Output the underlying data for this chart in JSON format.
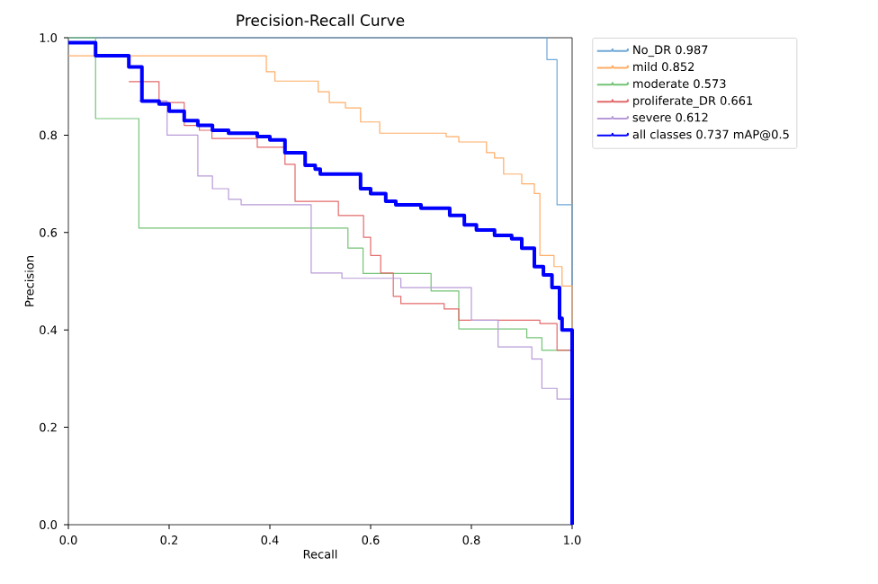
{
  "chart_data": {
    "type": "step",
    "title": "Precision-Recall Curve",
    "xlabel": "Recall",
    "ylabel": "Precision",
    "xlim": [
      0,
      1
    ],
    "ylim": [
      0,
      1
    ],
    "xticks": [
      {
        "value": 0,
        "label": "0.0"
      },
      0.2,
      0.4,
      0.6,
      0.8,
      {
        "value": 1,
        "label": "1.0"
      }
    ],
    "yticks": [
      {
        "value": 0,
        "label": "0.0"
      },
      0.2,
      0.4,
      0.6,
      0.8,
      {
        "value": 1,
        "label": "1.0"
      }
    ],
    "legend": "top right",
    "series": [
      {
        "name": "No_DR 0.987",
        "color": "#6fa8d6",
        "x": [
          0,
          0.95,
          0.97,
          1.0
        ],
        "values": [
          1.0,
          0.955,
          0.657,
          0
        ]
      },
      {
        "name": "mild 0.852",
        "color": "#ffad66",
        "x": [
          0,
          0.393,
          0.41,
          0.496,
          0.518,
          0.55,
          0.58,
          0.618,
          0.75,
          0.775,
          0.83,
          0.846,
          0.864,
          0.9,
          0.925,
          0.936,
          0.964,
          0.98,
          1.0
        ],
        "values": [
          0.963,
          0.93,
          0.911,
          0.889,
          0.867,
          0.856,
          0.827,
          0.804,
          0.797,
          0.786,
          0.764,
          0.753,
          0.72,
          0.7,
          0.68,
          0.553,
          0.53,
          0.49,
          0
        ]
      },
      {
        "name": "moderate 0.573",
        "color": "#74c476",
        "x": [
          0,
          0.054,
          0.14,
          0.555,
          0.585,
          0.72,
          0.775,
          0.91,
          0.94,
          1.0
        ],
        "values": [
          1.0,
          0.834,
          0.609,
          0.568,
          0.516,
          0.48,
          0.402,
          0.384,
          0.358,
          0
        ]
      },
      {
        "name": "proliferate_DR 0.661",
        "color": "#e36a6a",
        "x": [
          0.12,
          0.18,
          0.23,
          0.26,
          0.285,
          0.375,
          0.43,
          0.45,
          0.536,
          0.586,
          0.6,
          0.62,
          0.645,
          0.66,
          0.746,
          0.775,
          0.936,
          0.97,
          1.0
        ],
        "values": [
          0.91,
          0.867,
          0.82,
          0.81,
          0.793,
          0.775,
          0.74,
          0.664,
          0.635,
          0.59,
          0.553,
          0.517,
          0.469,
          0.454,
          0.443,
          0.42,
          0.413,
          0.358,
          0
        ]
      },
      {
        "name": "severe 0.612",
        "color": "#b89ad8",
        "x": [
          0.14,
          0.196,
          0.257,
          0.286,
          0.318,
          0.343,
          0.482,
          0.543,
          0.66,
          0.8,
          0.853,
          0.92,
          0.94,
          0.97,
          1.0
        ],
        "values": [
          0.87,
          0.8,
          0.716,
          0.69,
          0.668,
          0.657,
          0.517,
          0.506,
          0.487,
          0.42,
          0.365,
          0.34,
          0.28,
          0.258,
          0
        ]
      },
      {
        "name": "all classes 0.737 mAP@0.5",
        "color": "#0000ff",
        "x": [
          0,
          0.054,
          0.12,
          0.146,
          0.18,
          0.2,
          0.23,
          0.257,
          0.286,
          0.318,
          0.375,
          0.4,
          0.43,
          0.47,
          0.49,
          0.5,
          0.58,
          0.6,
          0.63,
          0.65,
          0.7,
          0.757,
          0.786,
          0.81,
          0.846,
          0.88,
          0.9,
          0.925,
          0.943,
          0.96,
          0.975,
          0.98,
          1.0
        ],
        "values": [
          0.99,
          0.963,
          0.94,
          0.87,
          0.864,
          0.849,
          0.83,
          0.82,
          0.81,
          0.804,
          0.797,
          0.79,
          0.764,
          0.738,
          0.73,
          0.72,
          0.69,
          0.68,
          0.664,
          0.657,
          0.65,
          0.635,
          0.616,
          0.605,
          0.594,
          0.587,
          0.568,
          0.53,
          0.513,
          0.487,
          0.424,
          0.4,
          0
        ]
      }
    ]
  }
}
